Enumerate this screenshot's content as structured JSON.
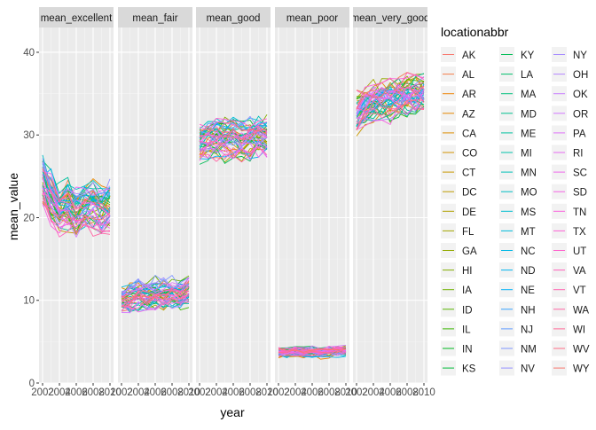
{
  "chart_data": {
    "type": "line",
    "facet_by": "variable",
    "facets": [
      "mean_excellent",
      "mean_fair",
      "mean_good",
      "mean_poor",
      "mean_very_good"
    ],
    "x_range": [
      2002,
      2010
    ],
    "x_ticks": [
      2002,
      2004,
      2006,
      2008,
      2010
    ],
    "x_tick_labels": [
      "2002",
      "2004",
      "2006",
      "2008",
      "2010"
    ],
    "y_range": [
      0,
      43
    ],
    "y_ticks": [
      0,
      10,
      20,
      30,
      40
    ],
    "y_tick_labels": [
      "0",
      "10",
      "20",
      "30",
      "40"
    ],
    "xlabel": "year",
    "ylabel": "mean_value",
    "grid": true,
    "legend_title": "locationabbr",
    "legend_position": "right",
    "facet_value_ranges": {
      "mean_excellent": {
        "center": [
          24.5,
          22.5,
          21.0,
          21.5,
          20.8,
          21.2,
          21.5,
          21.0,
          21.5
        ],
        "spread": 3.2
      },
      "mean_fair": {
        "center": [
          10.0,
          10.3,
          10.6,
          10.4,
          10.8,
          10.6,
          10.9,
          10.7,
          11.2
        ],
        "spread": 1.8
      },
      "mean_good": {
        "center": [
          29.0,
          29.3,
          29.6,
          29.4,
          29.7,
          29.5,
          29.6,
          29.8,
          29.8
        ],
        "spread": 2.3
      },
      "mean_poor": {
        "center": [
          3.6,
          3.6,
          3.7,
          3.6,
          3.7,
          3.6,
          3.7,
          3.8,
          3.8
        ],
        "spread": 0.7
      },
      "mean_very_good": {
        "center": [
          32.5,
          33.5,
          34.0,
          34.2,
          34.3,
          34.6,
          34.8,
          34.8,
          35.0
        ],
        "spread": 2.6
      }
    },
    "locations": [
      "AK",
      "AL",
      "AR",
      "AZ",
      "CA",
      "CO",
      "CT",
      "DC",
      "DE",
      "FL",
      "GA",
      "HI",
      "IA",
      "ID",
      "IL",
      "IN",
      "KS",
      "KY",
      "LA",
      "MA",
      "MD",
      "ME",
      "MI",
      "MN",
      "MO",
      "MS",
      "MT",
      "NC",
      "ND",
      "NE",
      "NH",
      "NJ",
      "NM",
      "NV",
      "NY",
      "OH",
      "OK",
      "OR",
      "PA",
      "RI",
      "SC",
      "SD",
      "TN",
      "TX",
      "UT",
      "VA",
      "VT",
      "WA",
      "WI",
      "WV",
      "WY"
    ],
    "series_colors": [
      "#F8766D",
      "#F47D4A",
      "#EE8305",
      "#E58700",
      "#DC8D00",
      "#D29300",
      "#C89800",
      "#BD9D00",
      "#B0A100",
      "#A3A500",
      "#93AA00",
      "#83AD00",
      "#6FB100",
      "#58B300",
      "#39B600",
      "#00B81F",
      "#00BA38",
      "#00BC55",
      "#00BE6C",
      "#00BF7D",
      "#00C08E",
      "#00C19F",
      "#00C1AB",
      "#00C0B8",
      "#00BFC4",
      "#00BDD0",
      "#00BBDB",
      "#00B8E5",
      "#00B4EF",
      "#00B0F6",
      "#35A2FF",
      "#619CFF",
      "#7E96FF",
      "#9590FF",
      "#A58AFF",
      "#B385FF",
      "#C77CFF",
      "#D376FF",
      "#DE71F9",
      "#E76BF3",
      "#EF67EB",
      "#F564E3",
      "#F962DD",
      "#FC61D5",
      "#FF61CC",
      "#FF62BC",
      "#FF64B0",
      "#FF67A4",
      "#FF6A98",
      "#FD6F85",
      "#F8766D"
    ]
  }
}
